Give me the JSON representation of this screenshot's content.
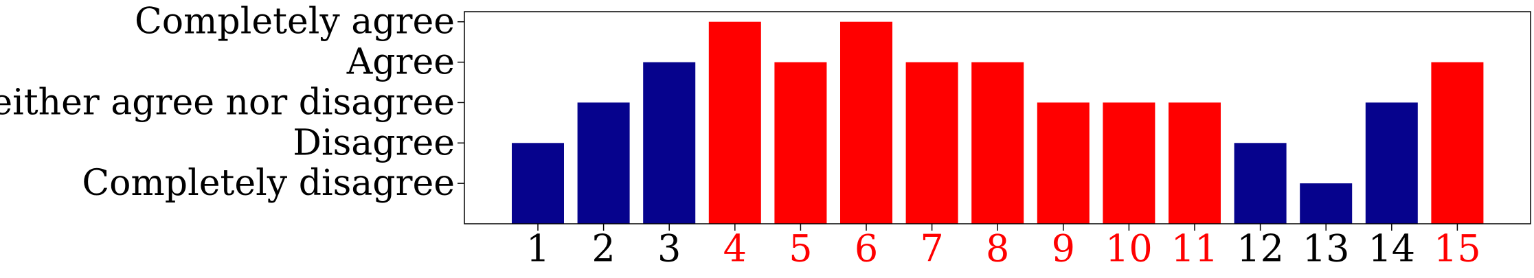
{
  "chart_data": {
    "type": "bar",
    "title": "",
    "xlabel": "",
    "ylabel": "",
    "categories": [
      "1",
      "2",
      "3",
      "4",
      "5",
      "6",
      "7",
      "8",
      "9",
      "10",
      "11",
      "12",
      "13",
      "14",
      "15"
    ],
    "values": [
      2,
      3,
      4,
      5,
      4,
      5,
      4,
      4,
      3,
      3,
      3,
      2,
      1,
      3,
      4
    ],
    "ylim": [
      0,
      5.25
    ],
    "y_tick_values": [
      1,
      2,
      3,
      4,
      5
    ],
    "y_tick_labels": [
      "Completely disagree",
      "Disagree",
      "Neither agree nor disagree",
      "Agree",
      "Completely agree"
    ],
    "bar_colors": [
      "#06038d",
      "#06038d",
      "#06038d",
      "#ff0000",
      "#ff0000",
      "#ff0000",
      "#ff0000",
      "#ff0000",
      "#ff0000",
      "#ff0000",
      "#ff0000",
      "#06038d",
      "#06038d",
      "#06038d",
      "#ff0000"
    ],
    "x_label_colors": [
      "#000000",
      "#000000",
      "#000000",
      "#ff0000",
      "#ff0000",
      "#ff0000",
      "#ff0000",
      "#ff0000",
      "#ff0000",
      "#ff0000",
      "#ff0000",
      "#000000",
      "#000000",
      "#000000",
      "#ff0000"
    ],
    "grid": false,
    "legend": "none"
  }
}
